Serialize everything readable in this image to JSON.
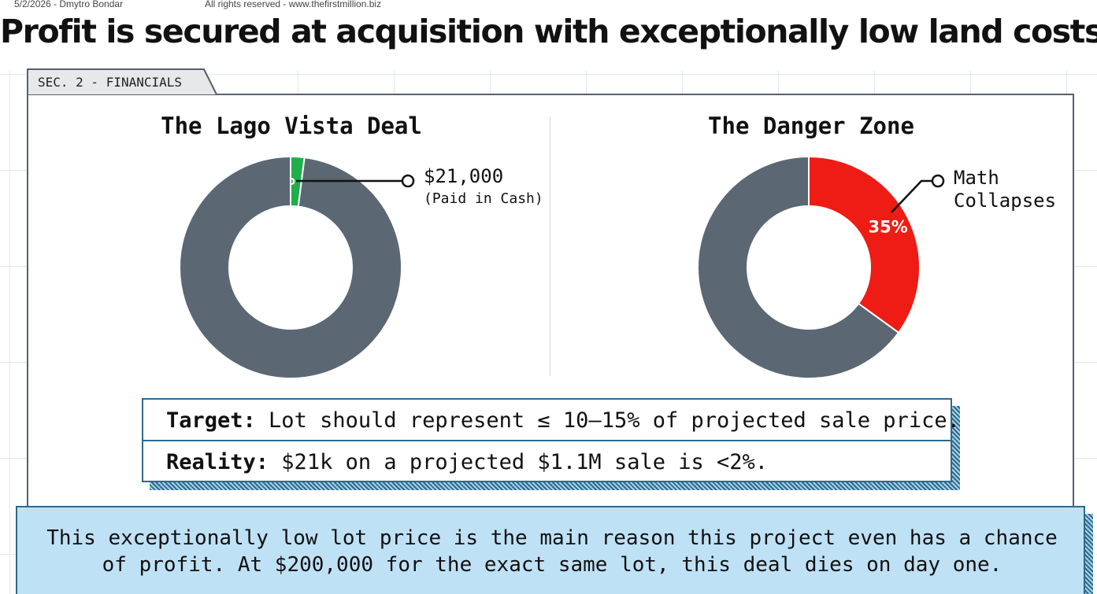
{
  "meta": {
    "left": "5/2/2026 - Dmytro Bondar",
    "right": "All rights reserved - www.thefirstmillion.biz"
  },
  "headline": "Profit is secured at acquisition with exceptionally low land costs.",
  "tab_label": "SEC. 2 - FINANCIALS",
  "colors": {
    "gray": "#5b6873",
    "green": "#1fae4b",
    "red": "#ee1c14",
    "box_border": "#2c6a8c",
    "banner_fill": "#bfe1f5"
  },
  "chart_data": [
    {
      "type": "pie",
      "title": "The Lago Vista Deal",
      "donut": true,
      "slices": [
        {
          "label": "2%",
          "value": 2,
          "color": "#1fae4b"
        },
        {
          "label": "",
          "value": 98,
          "color": "#5b6873"
        }
      ],
      "callout": {
        "amount": "$21,000",
        "note": "(Paid in Cash)"
      }
    },
    {
      "type": "pie",
      "title": "The Danger Zone",
      "donut": true,
      "slices": [
        {
          "label": "35%",
          "value": 35,
          "color": "#ee1c14"
        },
        {
          "label": "",
          "value": 65,
          "color": "#5b6873"
        }
      ],
      "callout": {
        "line1": "Math",
        "line2": "Collapses"
      }
    }
  ],
  "info_box": {
    "target_label": "Target:",
    "target_text": " Lot should represent ≤ 10–15% of projected sale price.",
    "reality_label": "Reality:",
    "reality_text": " $21k on a projected $1.1M sale is <2%."
  },
  "banner": {
    "line1": "This exceptionally low lot price is the main reason this project even has a chance",
    "line2": "of profit. At $200,000 for the exact same lot, this deal dies on day one."
  }
}
